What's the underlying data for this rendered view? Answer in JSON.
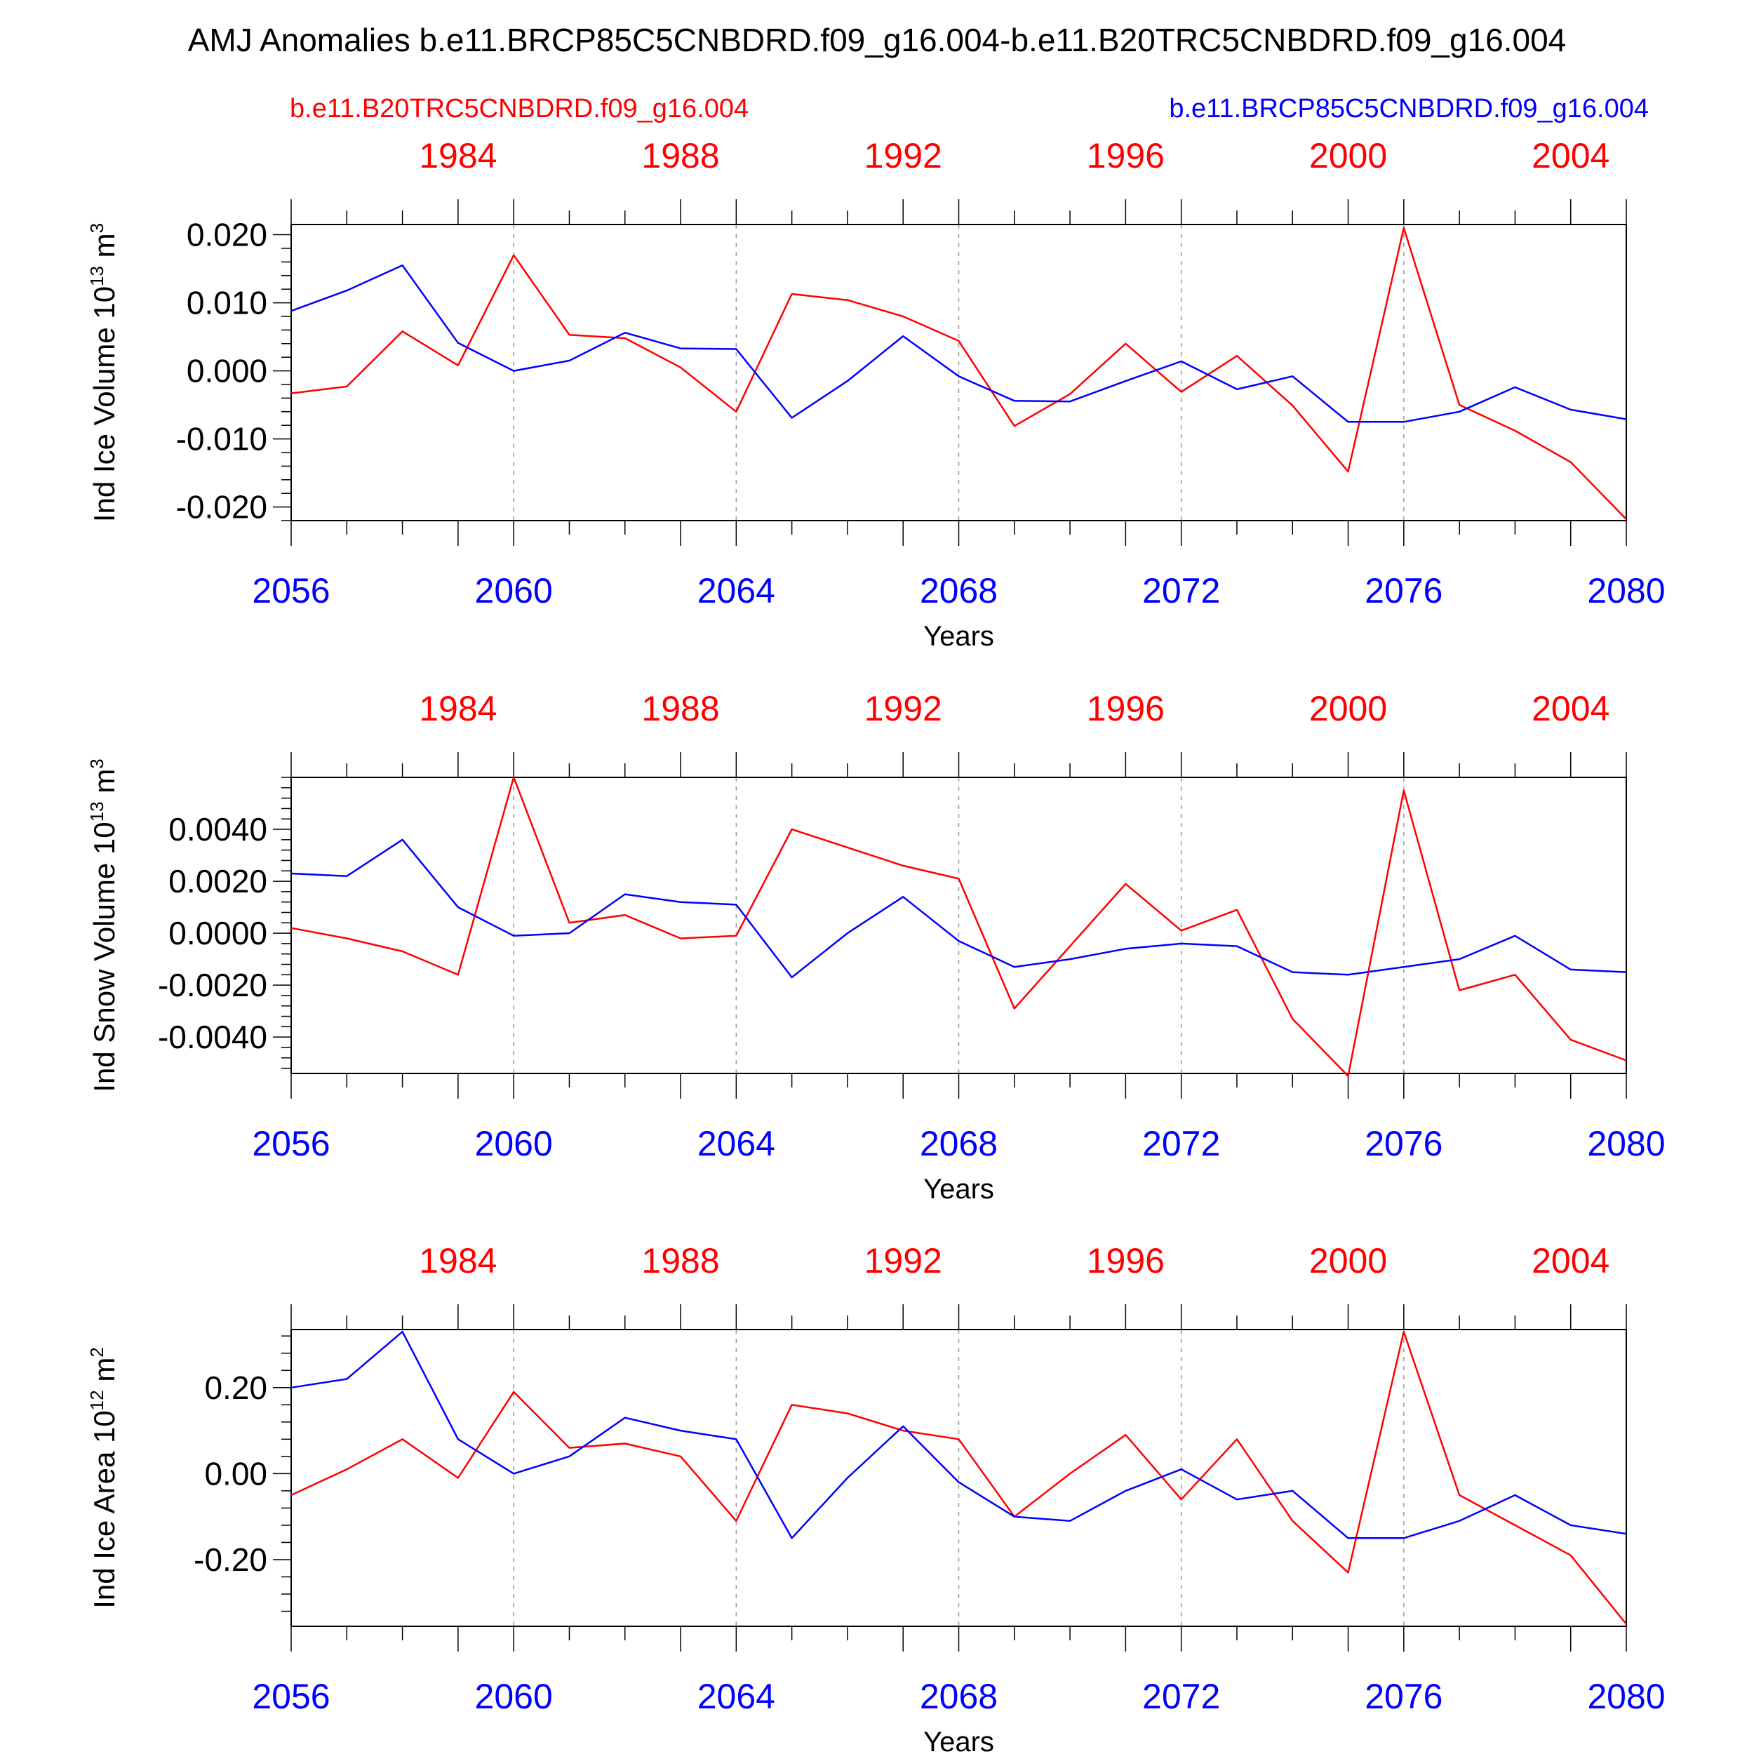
{
  "title": "AMJ Anomalies b.e11.BRCP85C5CNBDRD.f09_g16.004-b.e11.B20TRC5CNBDRD.f09_g16.004",
  "legend": {
    "red": "b.e11.B20TRC5CNBDRD.f09_g16.004",
    "blue": "b.e11.BRCP85C5CNBDRD.f09_g16.004"
  },
  "colors": {
    "red": "#ff0000",
    "blue": "#0000ff",
    "axis": "#000000",
    "grid": "#9a9a9a"
  },
  "chart_data": [
    {
      "type": "line",
      "ylabel": "Ind Ice Volume",
      "yunit": "10",
      "yunit_exp": "13",
      "yunit_var": "m",
      "yunit_var_exp": "3",
      "xlabel": "Years",
      "xlim": [
        2056,
        2080
      ],
      "ylim": [
        -0.022,
        0.0215
      ],
      "yticks": [
        0.02,
        0.01,
        0.0,
        -0.01,
        -0.02
      ],
      "ytick_labels": [
        "0.020",
        "0.010",
        "0.000",
        "-0.010",
        "-0.020"
      ],
      "x": [
        2056,
        2057,
        2058,
        2059,
        2060,
        2061,
        2062,
        2063,
        2064,
        2065,
        2066,
        2067,
        2068,
        2069,
        2070,
        2071,
        2072,
        2073,
        2074,
        2075,
        2076,
        2077,
        2078,
        2079,
        2080
      ],
      "series": [
        {
          "color": "red",
          "values": [
            -0.0033,
            -0.0023,
            0.0058,
            0.0008,
            0.017,
            0.0053,
            0.0048,
            0.0005,
            -0.006,
            0.0113,
            0.0104,
            0.008,
            0.0044,
            -0.0081,
            -0.0034,
            0.004,
            -0.0031,
            0.0022,
            -0.0051,
            -0.0148,
            0.021,
            -0.005,
            -0.0088,
            -0.0134,
            -0.0218
          ]
        },
        {
          "color": "blue",
          "values": [
            0.0088,
            0.0118,
            0.0155,
            0.0041,
            0.0,
            0.0015,
            0.0056,
            0.0033,
            0.0032,
            -0.0069,
            -0.0015,
            0.0051,
            -0.0008,
            -0.0044,
            -0.0045,
            -0.0015,
            0.0014,
            -0.0027,
            -0.0008,
            -0.0075,
            -0.0075,
            -0.006,
            -0.0024,
            -0.0057,
            -0.0071
          ]
        }
      ]
    },
    {
      "type": "line",
      "ylabel": "Ind Snow Volume",
      "yunit": "10",
      "yunit_exp": "13",
      "yunit_var": "m",
      "yunit_var_exp": "3",
      "xlabel": "Years",
      "xlim": [
        2056,
        2080
      ],
      "ylim": [
        -0.0054,
        0.006
      ],
      "yticks": [
        0.004,
        0.002,
        0.0,
        -0.002,
        -0.004
      ],
      "ytick_labels": [
        "0.0040",
        "0.0020",
        "0.0000",
        "-0.0020",
        "-0.0040"
      ],
      "x": [
        2056,
        2057,
        2058,
        2059,
        2060,
        2061,
        2062,
        2063,
        2064,
        2065,
        2066,
        2067,
        2068,
        2069,
        2070,
        2071,
        2072,
        2073,
        2074,
        2075,
        2076,
        2077,
        2078,
        2079,
        2080
      ],
      "series": [
        {
          "color": "red",
          "values": [
            0.0002,
            -0.0002,
            -0.0007,
            -0.0016,
            0.006,
            0.0004,
            0.0007,
            -0.0002,
            -0.0001,
            0.004,
            0.0033,
            0.0026,
            0.0021,
            -0.0029,
            -0.0005,
            0.0019,
            0.0001,
            0.0009,
            -0.0033,
            -0.0055,
            0.0055,
            -0.0022,
            -0.0016,
            -0.0041,
            -0.0049
          ]
        },
        {
          "color": "blue",
          "values": [
            0.0023,
            0.0022,
            0.0036,
            0.001,
            -0.0001,
            0.0,
            0.0015,
            0.0012,
            0.0011,
            -0.0017,
            0.0,
            0.0014,
            -0.0003,
            -0.0013,
            -0.001,
            -0.0006,
            -0.0004,
            -0.0005,
            -0.0015,
            -0.0016,
            -0.0013,
            -0.001,
            -0.0001,
            -0.0014,
            -0.0015
          ]
        }
      ]
    },
    {
      "type": "line",
      "ylabel": "Ind Ice Area",
      "yunit": "10",
      "yunit_exp": "12",
      "yunit_var": "m",
      "yunit_var_exp": "2",
      "xlabel": "Years",
      "xlim": [
        2056,
        2080
      ],
      "ylim": [
        -0.355,
        0.335
      ],
      "yticks": [
        0.2,
        0.0,
        -0.2
      ],
      "ytick_labels": [
        "0.20",
        "0.00",
        "-0.20"
      ],
      "x": [
        2056,
        2057,
        2058,
        2059,
        2060,
        2061,
        2062,
        2063,
        2064,
        2065,
        2066,
        2067,
        2068,
        2069,
        2070,
        2071,
        2072,
        2073,
        2074,
        2075,
        2076,
        2077,
        2078,
        2079,
        2080
      ],
      "series": [
        {
          "color": "red",
          "values": [
            -0.05,
            0.01,
            0.08,
            -0.01,
            0.19,
            0.06,
            0.07,
            0.04,
            -0.11,
            0.16,
            0.14,
            0.1,
            0.08,
            -0.1,
            0.0,
            0.09,
            -0.06,
            0.08,
            -0.11,
            -0.23,
            0.33,
            -0.05,
            -0.12,
            -0.19,
            -0.35
          ]
        },
        {
          "color": "blue",
          "values": [
            0.2,
            0.22,
            0.33,
            0.08,
            0.0,
            0.04,
            0.13,
            0.1,
            0.08,
            -0.15,
            -0.01,
            0.11,
            -0.02,
            -0.1,
            -0.11,
            -0.04,
            0.01,
            -0.06,
            -0.04,
            -0.15,
            -0.15,
            -0.11,
            -0.05,
            -0.12,
            -0.14
          ]
        }
      ]
    }
  ],
  "x_bottom": {
    "ticks": [
      2056,
      2060,
      2064,
      2068,
      2072,
      2076,
      2080
    ],
    "labels": [
      "2056",
      "2060",
      "2064",
      "2068",
      "2072",
      "2076",
      "2080"
    ]
  },
  "x_top": {
    "positions": [
      2059,
      2063,
      2067,
      2071,
      2075,
      2079
    ],
    "labels": [
      "1984",
      "1988",
      "1992",
      "1996",
      "2000",
      "2004"
    ]
  }
}
